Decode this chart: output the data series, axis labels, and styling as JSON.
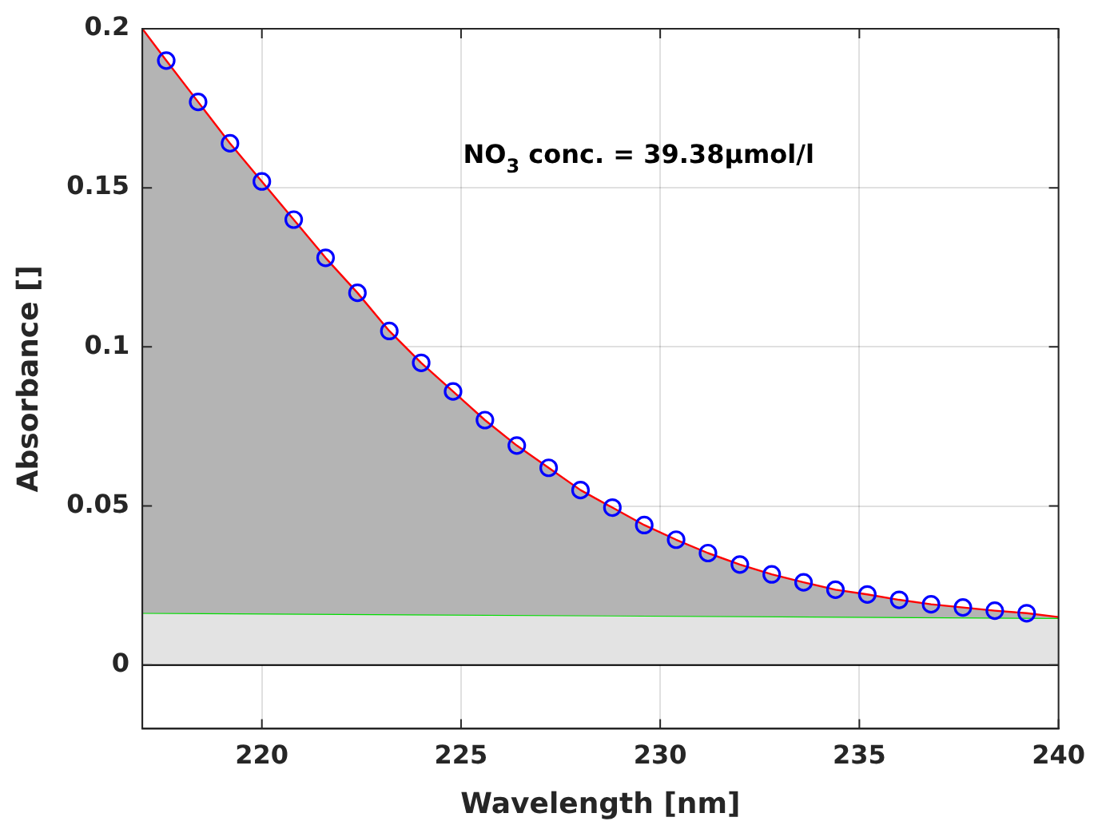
{
  "chart_data": {
    "type": "line",
    "xlabel": "Wavelength [nm]",
    "ylabel": "Absorbance []",
    "annotations": [
      "NO$_{3}$ conc. = 39.38μmol/l"
    ],
    "series": [
      {
        "type": "scatter",
        "color": "#0000ff",
        "marker": "circle",
        "x": [
          217.6,
          218.4,
          219.2,
          220.0,
          220.8,
          221.6,
          222.4,
          223.2,
          224.0,
          224.8,
          225.6,
          226.4,
          227.2,
          228.0,
          228.8,
          229.6,
          230.4,
          231.2,
          232.0,
          232.8,
          233.6,
          234.4,
          235.2,
          236.0,
          236.8,
          237.6,
          238.4,
          239.2
        ],
        "values": [
          0.19,
          0.177,
          0.164,
          0.152,
          0.14,
          0.128,
          0.117,
          0.105,
          0.095,
          0.086,
          0.077,
          0.069,
          0.062,
          0.055,
          0.0495,
          0.044,
          0.0394,
          0.0352,
          0.0316,
          0.0285,
          0.026,
          0.0237,
          0.0222,
          0.0205,
          0.0191,
          0.0181,
          0.0171,
          0.0163
        ]
      },
      {
        "type": "area",
        "color": "#ff0000",
        "x": [
          217,
          217.6,
          218.4,
          219.2,
          220.0,
          220.8,
          221.6,
          222.4,
          223.2,
          224.0,
          224.8,
          225.6,
          226.4,
          227.2,
          228.0,
          228.8,
          229.6,
          230.4,
          231.2,
          232.0,
          232.8,
          233.6,
          234.4,
          235.2,
          236.0,
          236.8,
          237.6,
          238.4,
          239.2,
          240
        ],
        "values": [
          0.2,
          0.19,
          0.177,
          0.164,
          0.152,
          0.14,
          0.128,
          0.117,
          0.105,
          0.095,
          0.086,
          0.077,
          0.069,
          0.062,
          0.055,
          0.0495,
          0.044,
          0.0394,
          0.0352,
          0.0316,
          0.0285,
          0.026,
          0.0237,
          0.0222,
          0.0205,
          0.0191,
          0.0181,
          0.0171,
          0.0163,
          0.0151
        ]
      },
      {
        "type": "area",
        "color": "#00dd00",
        "x": [
          217,
          240
        ],
        "values": [
          0.0164,
          0.0148
        ]
      }
    ],
    "xlim": [
      217,
      240
    ],
    "xticks": [
      220,
      225,
      230,
      235,
      240
    ],
    "ylim": [
      -0.02,
      0.2
    ],
    "yticks": [
      0,
      0.05,
      0.1,
      0.15,
      0.2
    ],
    "ref_lines": [
      {
        "axis": "y",
        "value": 0,
        "color": "#000000"
      }
    ],
    "grid": true,
    "legend": false
  }
}
